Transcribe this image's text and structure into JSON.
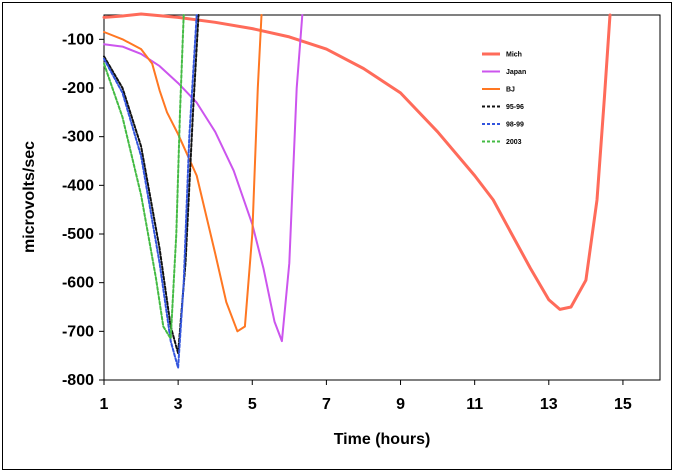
{
  "chart_data": {
    "type": "line",
    "title": "",
    "xlabel": "Time (hours)",
    "ylabel": "microvolts/sec",
    "xlim": [
      1,
      16
    ],
    "ylim": [
      -800,
      -50
    ],
    "xticks": [
      "1",
      "3",
      "5",
      "7",
      "9",
      "11",
      "13",
      "15"
    ],
    "yticks": [
      "-100",
      "-200",
      "-300",
      "-400",
      "-500",
      "-600",
      "-700",
      "-800"
    ],
    "grid": false,
    "legend_position": "top-right",
    "series": [
      {
        "name": "Mich",
        "color": "#ff6b5a",
        "dash": "solid",
        "width": 3,
        "x": [
          1.0,
          1.5,
          2.0,
          3.0,
          4.0,
          5.0,
          6.0,
          7.0,
          8.0,
          9.0,
          10.0,
          11.0,
          11.5,
          12.0,
          12.5,
          13.0,
          13.3,
          13.6,
          14.0,
          14.3,
          14.5,
          14.65
        ],
        "y": [
          -55,
          -52,
          -48,
          -55,
          -65,
          -78,
          -95,
          -120,
          -160,
          -210,
          -290,
          -380,
          -430,
          -500,
          -570,
          -635,
          -655,
          -650,
          -595,
          -430,
          -220,
          -50
        ]
      },
      {
        "name": "Japan",
        "color": "#cc55ee",
        "dash": "solid",
        "width": 2,
        "x": [
          1.0,
          1.5,
          2.0,
          2.5,
          3.0,
          3.5,
          4.0,
          4.5,
          5.0,
          5.3,
          5.6,
          5.8,
          6.0,
          6.2,
          6.35
        ],
        "y": [
          -110,
          -115,
          -130,
          -155,
          -190,
          -230,
          -290,
          -370,
          -480,
          -570,
          -680,
          -720,
          -560,
          -200,
          -50
        ]
      },
      {
        "name": "BJ",
        "color": "#ff7722",
        "dash": "solid",
        "width": 2,
        "x": [
          1.0,
          1.5,
          2.0,
          2.3,
          2.5,
          2.7,
          3.0,
          3.5,
          4.0,
          4.3,
          4.6,
          4.8,
          5.0,
          5.15,
          5.25
        ],
        "y": [
          -85,
          -100,
          -120,
          -150,
          -205,
          -250,
          -295,
          -380,
          -540,
          -640,
          -700,
          -690,
          -500,
          -200,
          -50
        ]
      },
      {
        "name": "95-96",
        "color": "#111111",
        "dash": "3,2",
        "width": 2,
        "x": [
          1.0,
          1.5,
          2.0,
          2.5,
          2.8,
          3.0,
          3.2,
          3.4,
          3.55
        ],
        "y": [
          -135,
          -200,
          -320,
          -530,
          -690,
          -745,
          -560,
          -250,
          -50
        ]
      },
      {
        "name": "98-99",
        "color": "#3355dd",
        "dash": "3,2",
        "width": 2,
        "x": [
          1.0,
          1.5,
          2.0,
          2.5,
          2.8,
          3.0,
          3.15,
          3.3,
          3.5
        ],
        "y": [
          -140,
          -210,
          -340,
          -560,
          -720,
          -775,
          -600,
          -300,
          -50
        ]
      },
      {
        "name": "2003",
        "color": "#44bb44",
        "dash": "3,2",
        "width": 2,
        "x": [
          1.0,
          1.5,
          2.0,
          2.4,
          2.6,
          2.8,
          2.95,
          3.05,
          3.15
        ],
        "y": [
          -150,
          -260,
          -420,
          -590,
          -690,
          -715,
          -500,
          -250,
          -50
        ]
      }
    ]
  }
}
